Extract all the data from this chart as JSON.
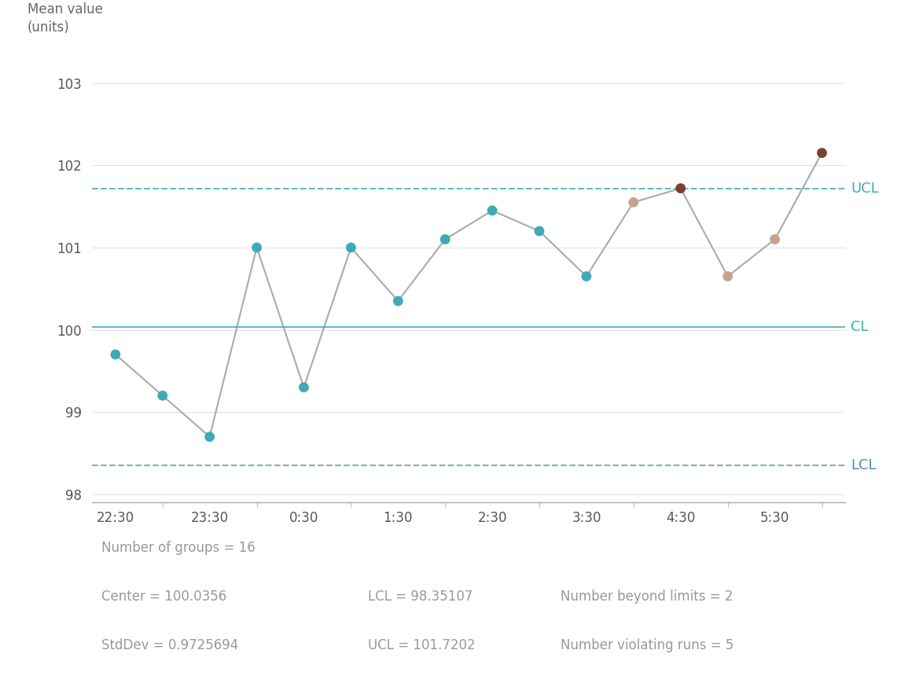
{
  "y_values": [
    99.7,
    99.2,
    98.7,
    101.0,
    99.3,
    101.0,
    100.35,
    101.1,
    101.45,
    101.2,
    100.65,
    101.55,
    101.72,
    100.65,
    101.1,
    102.15
  ],
  "point_types": [
    "normal",
    "normal",
    "normal",
    "normal",
    "normal",
    "normal",
    "normal",
    "normal",
    "normal",
    "normal",
    "normal",
    "violating",
    "beyond",
    "violating",
    "violating",
    "beyond"
  ],
  "x_tick_positions": [
    0,
    2,
    4,
    6,
    8,
    10,
    12,
    14
  ],
  "x_tick_labels": [
    "22:30",
    "23:30",
    "0:30",
    "1:30",
    "2:30",
    "3:30",
    "4:30",
    "5:30"
  ],
  "UCL": 101.7202,
  "LCL": 98.35107,
  "CL": 100.0356,
  "ylabel_line1": "Mean value",
  "ylabel_line2": "(units)",
  "ylim": [
    97.9,
    103.5
  ],
  "yticks": [
    98,
    99,
    100,
    101,
    102,
    103
  ],
  "color_normal": "#3daab5",
  "color_violating": "#c9a090",
  "color_beyond": "#7b4030",
  "color_line": "#aaaaaa",
  "color_UCL": "#3daab5",
  "color_LCL": "#4a8faa",
  "color_CL": "#3daab5",
  "stats_color": "#999999",
  "stats_fontsize": 12,
  "stat_n_groups": "Number of groups = 16",
  "stat_center": "Center = 100.0356",
  "stat_lcl": "LCL = 98.35107",
  "stat_beyond": "Number beyond limits = 2",
  "stat_stddev": "StdDev = 0.9725694",
  "stat_ucl": "UCL = 101.7202",
  "stat_violating": "Number violating runs = 5"
}
